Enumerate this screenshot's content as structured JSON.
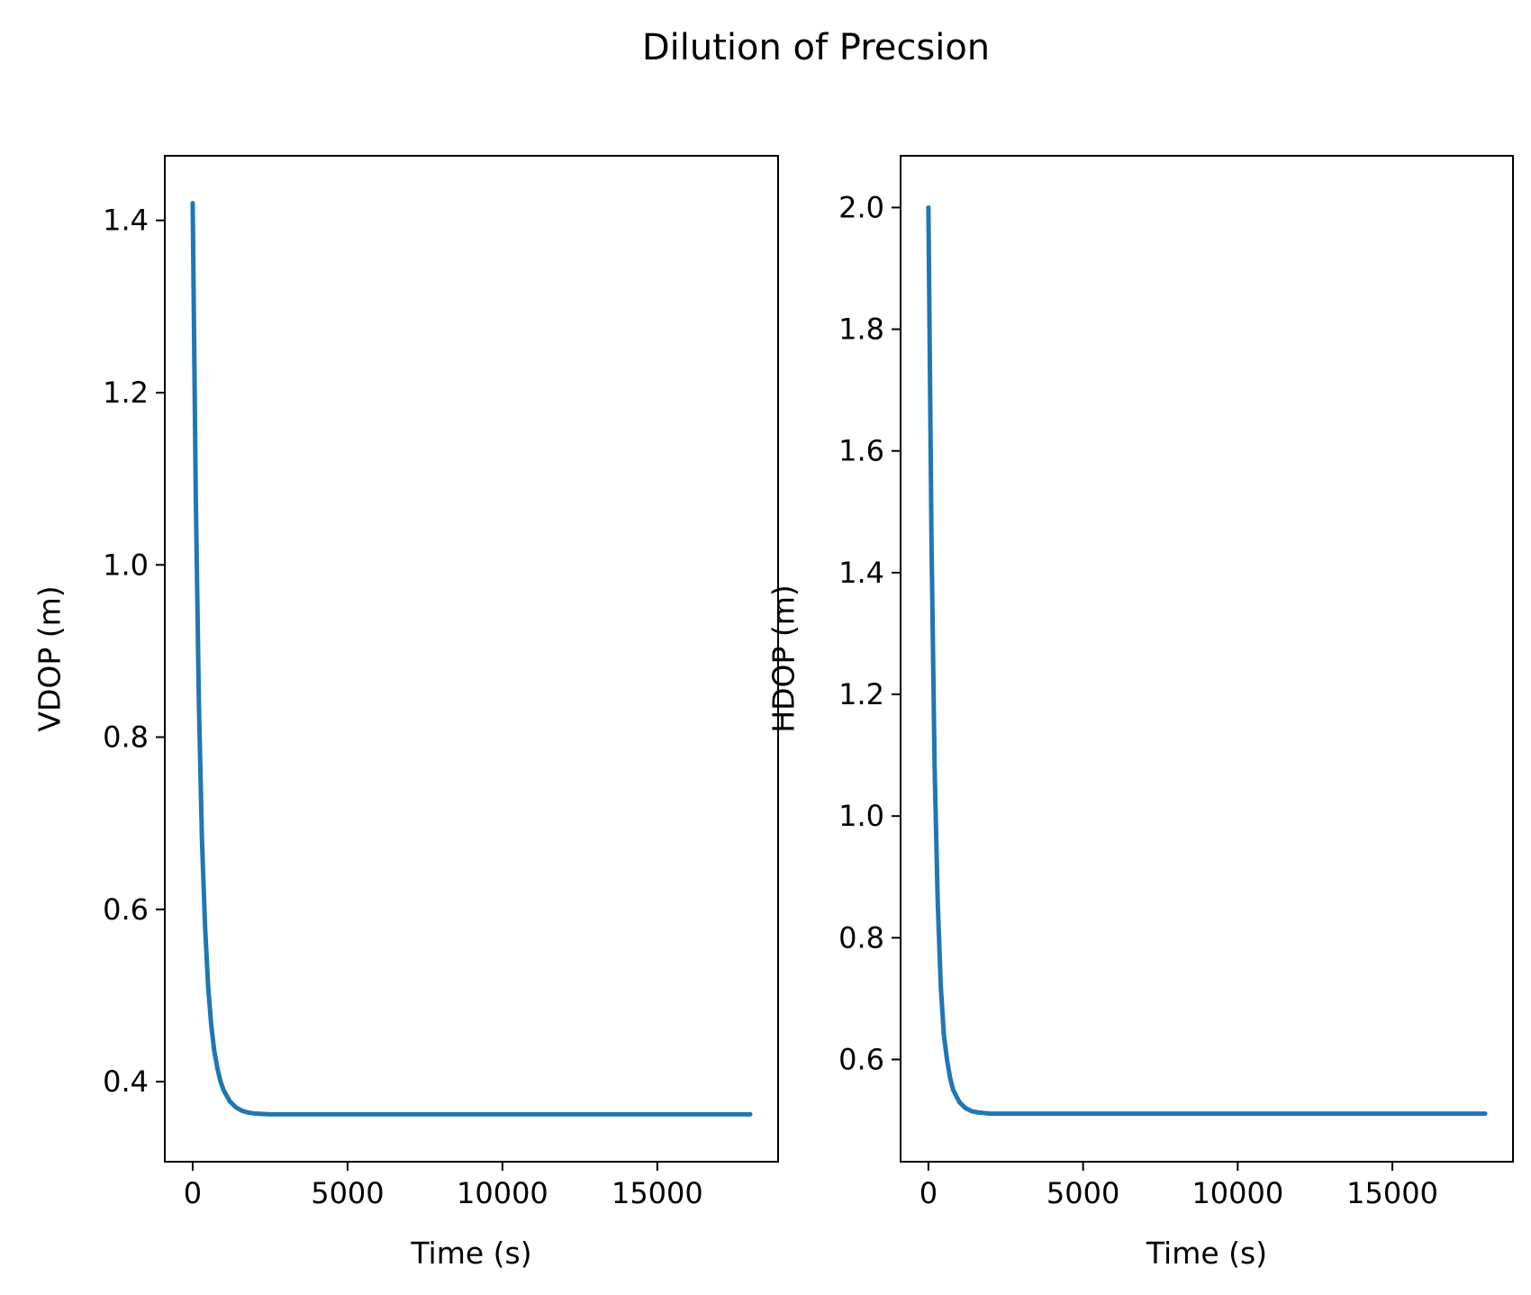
{
  "figure": {
    "suptitle": "Dilution of Precsion",
    "line_color": "#1f77b4"
  },
  "chart_data": [
    {
      "type": "line",
      "title": "",
      "xlabel": "Time (s)",
      "ylabel": "VDOP (m)",
      "xlim": [
        -900,
        18900
      ],
      "ylim": [
        0.307,
        1.475
      ],
      "xticks": [
        0,
        5000,
        10000,
        15000
      ],
      "xtick_labels": [
        "0",
        "5000",
        "10000",
        "15000"
      ],
      "yticks": [
        0.4,
        0.6,
        0.8,
        1.0,
        1.2,
        1.4
      ],
      "ytick_labels": [
        "0.4",
        "0.6",
        "0.8",
        "1.0",
        "1.2",
        "1.4"
      ],
      "grid": false,
      "series": [
        {
          "x": [
            0,
            100,
            200,
            300,
            400,
            500,
            600,
            700,
            800,
            900,
            1000,
            1200,
            1400,
            1600,
            1800,
            2000,
            2500,
            3000,
            4000,
            5000,
            6000,
            7000,
            8000,
            9000,
            10000,
            11000,
            12000,
            13000,
            14000,
            15000,
            16000,
            17000,
            18000
          ],
          "values": [
            1.42,
            1.08,
            0.84,
            0.68,
            0.58,
            0.51,
            0.465,
            0.435,
            0.415,
            0.4,
            0.39,
            0.377,
            0.37,
            0.366,
            0.364,
            0.363,
            0.362,
            0.362,
            0.362,
            0.362,
            0.362,
            0.362,
            0.362,
            0.362,
            0.362,
            0.362,
            0.362,
            0.362,
            0.362,
            0.362,
            0.362,
            0.362,
            0.362
          ]
        }
      ]
    },
    {
      "type": "line",
      "title": "",
      "xlabel": "Time (s)",
      "ylabel": "HDOP (m)",
      "xlim": [
        -900,
        18900
      ],
      "ylim": [
        0.432,
        2.085
      ],
      "xticks": [
        0,
        5000,
        10000,
        15000
      ],
      "xtick_labels": [
        "0",
        "5000",
        "10000",
        "15000"
      ],
      "yticks": [
        0.6,
        0.8,
        1.0,
        1.2,
        1.4,
        1.6,
        1.8,
        2.0
      ],
      "ytick_labels": [
        "0.6",
        "0.8",
        "1.0",
        "1.2",
        "1.4",
        "1.6",
        "1.8",
        "2.0"
      ],
      "grid": false,
      "series": [
        {
          "x": [
            0,
            100,
            200,
            300,
            400,
            500,
            600,
            700,
            800,
            900,
            1000,
            1200,
            1400,
            1600,
            1800,
            2000,
            2500,
            3000,
            4000,
            5000,
            6000,
            7000,
            8000,
            9000,
            10000,
            11000,
            12000,
            13000,
            14000,
            15000,
            16000,
            17000,
            18000
          ],
          "values": [
            2.0,
            1.45,
            1.08,
            0.86,
            0.72,
            0.64,
            0.6,
            0.57,
            0.55,
            0.54,
            0.53,
            0.52,
            0.515,
            0.513,
            0.512,
            0.511,
            0.511,
            0.511,
            0.511,
            0.511,
            0.511,
            0.511,
            0.511,
            0.511,
            0.511,
            0.511,
            0.511,
            0.511,
            0.511,
            0.511,
            0.511,
            0.511,
            0.511
          ]
        }
      ]
    }
  ]
}
